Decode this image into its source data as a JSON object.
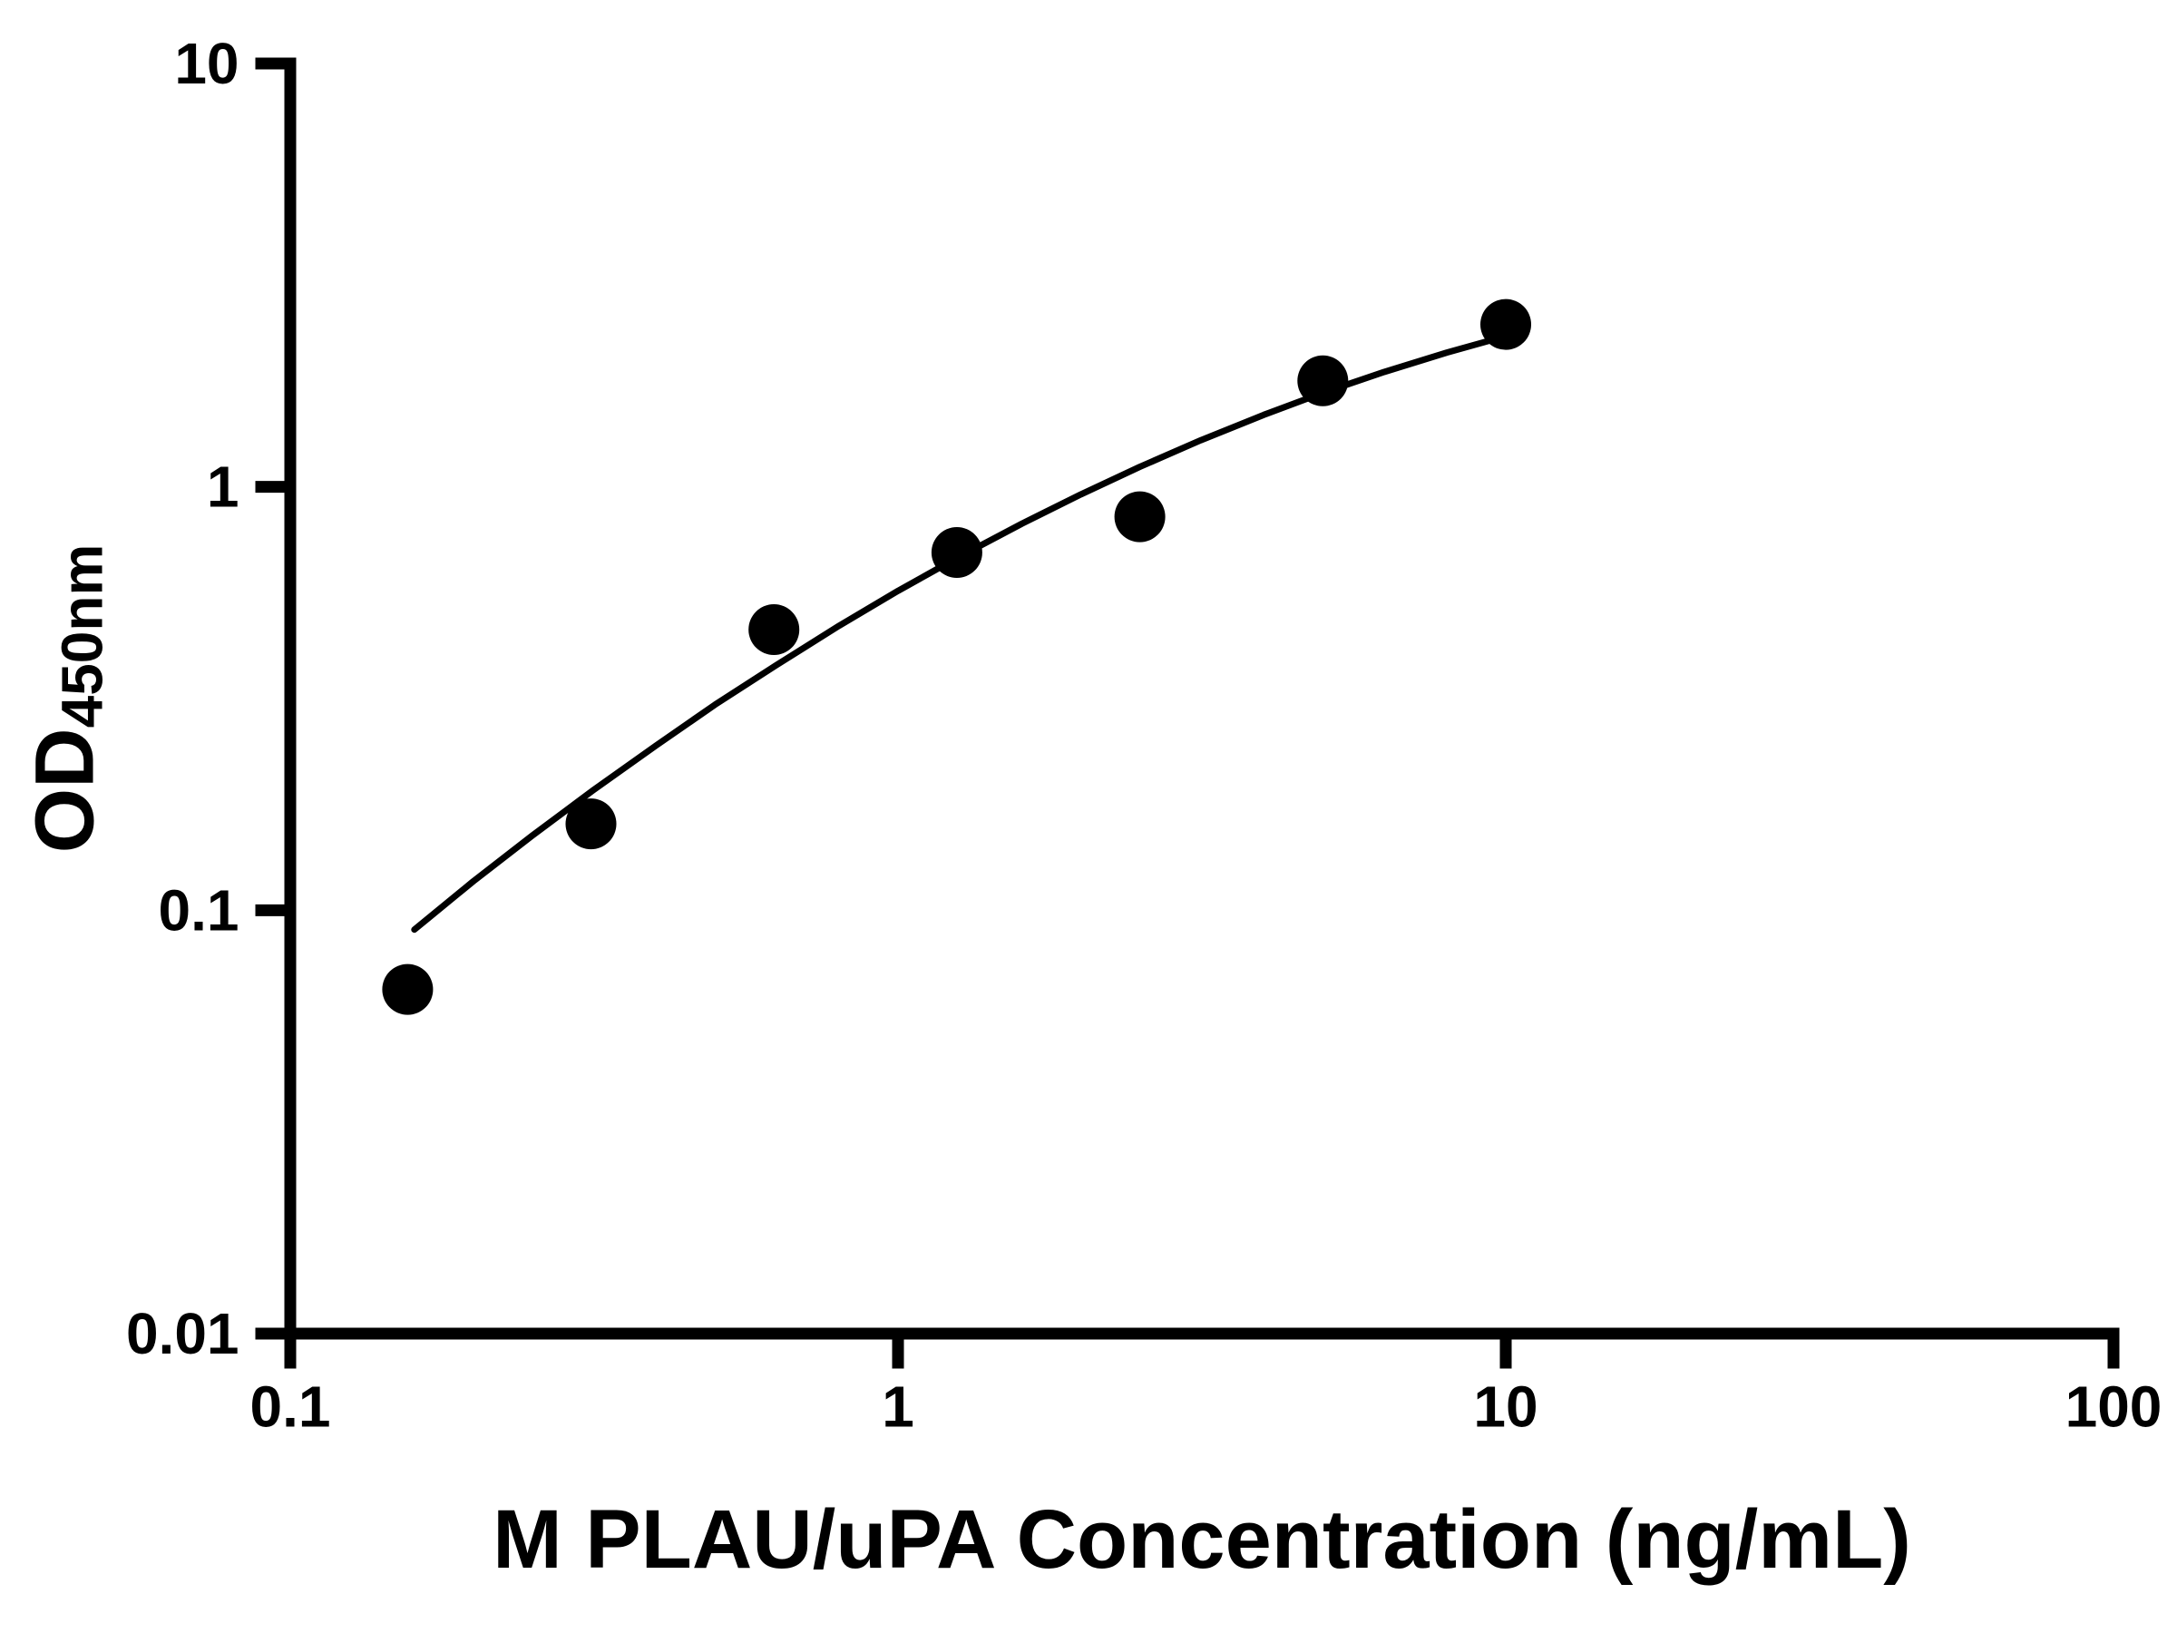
{
  "figure": {
    "background": "#ffffff"
  },
  "chart_data": {
    "type": "scatter",
    "title": "",
    "xlabel": "M PLAU/uPA Concentration (ng/mL)",
    "ylabel_main": "OD",
    "ylabel_sub": "450nm",
    "x_scale": "log",
    "y_scale": "log",
    "xlim": [
      0.1,
      100
    ],
    "ylim": [
      0.01,
      10
    ],
    "x_ticks": [
      0.1,
      1,
      10,
      100
    ],
    "x_tick_labels": [
      "0.1",
      "1",
      "10",
      "100"
    ],
    "y_ticks": [
      0.01,
      0.1,
      1,
      10
    ],
    "y_tick_labels": [
      "0.01",
      "0.1",
      "1",
      "10"
    ],
    "grid": false,
    "legend": "none",
    "axis_color": "#000000",
    "series": [
      {
        "name": "fitted-standard-curve",
        "type": "line",
        "color": "#000000",
        "x": [
          0.16,
          0.2,
          0.25,
          0.315,
          0.4,
          0.5,
          0.63,
          0.8,
          1.0,
          1.25,
          1.6,
          2.0,
          2.5,
          3.15,
          4.0,
          5.0,
          6.3,
          8.0,
          10.0
        ],
        "y": [
          0.09,
          0.117,
          0.15,
          0.192,
          0.245,
          0.306,
          0.379,
          0.47,
          0.568,
          0.679,
          0.819,
          0.96,
          1.115,
          1.289,
          1.48,
          1.668,
          1.867,
          2.076,
          2.27
        ]
      },
      {
        "name": "standard-data-points",
        "type": "scatter",
        "marker": "circle",
        "color": "#000000",
        "x": [
          0.156,
          0.3125,
          0.625,
          1.25,
          2.5,
          5,
          10
        ],
        "y": [
          0.065,
          0.16,
          0.46,
          0.7,
          0.85,
          1.78,
          2.42
        ]
      }
    ]
  }
}
